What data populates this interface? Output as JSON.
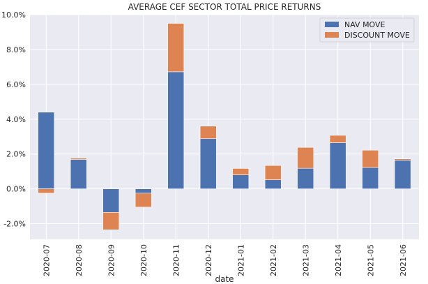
{
  "chart_data": {
    "type": "bar",
    "stacked": true,
    "title": "AVERAGE CEF SECTOR TOTAL PRICE RETURNS",
    "xlabel": "date",
    "ylabel": "",
    "categories": [
      "2020-07",
      "2020-08",
      "2020-09",
      "2020-10",
      "2020-11",
      "2020-12",
      "2021-01",
      "2021-02",
      "2021-03",
      "2021-04",
      "2021-05",
      "2021-06"
    ],
    "series": [
      {
        "name": "NAV MOVE",
        "color": "#4c72b0",
        "values": [
          4.4,
          1.68,
          -1.35,
          -0.25,
          6.72,
          2.88,
          0.8,
          0.52,
          1.18,
          2.65,
          1.22,
          1.65
        ]
      },
      {
        "name": "DISCOUNT MOVE",
        "color": "#dd8452",
        "values": [
          -0.25,
          0.08,
          -1.0,
          -0.8,
          2.78,
          0.72,
          0.37,
          0.82,
          1.2,
          0.42,
          1.0,
          0.07
        ]
      }
    ],
    "ylim": [
      -2.9,
      10.0
    ],
    "yticks": [
      -2.0,
      0.0,
      2.0,
      4.0,
      6.0,
      8.0,
      10.0
    ],
    "ytick_labels": [
      "-2.0%",
      "0.0%",
      "2.0%",
      "4.0%",
      "6.0%",
      "8.0%",
      "10.0%"
    ],
    "grid": true,
    "legend_position": "top-right"
  }
}
